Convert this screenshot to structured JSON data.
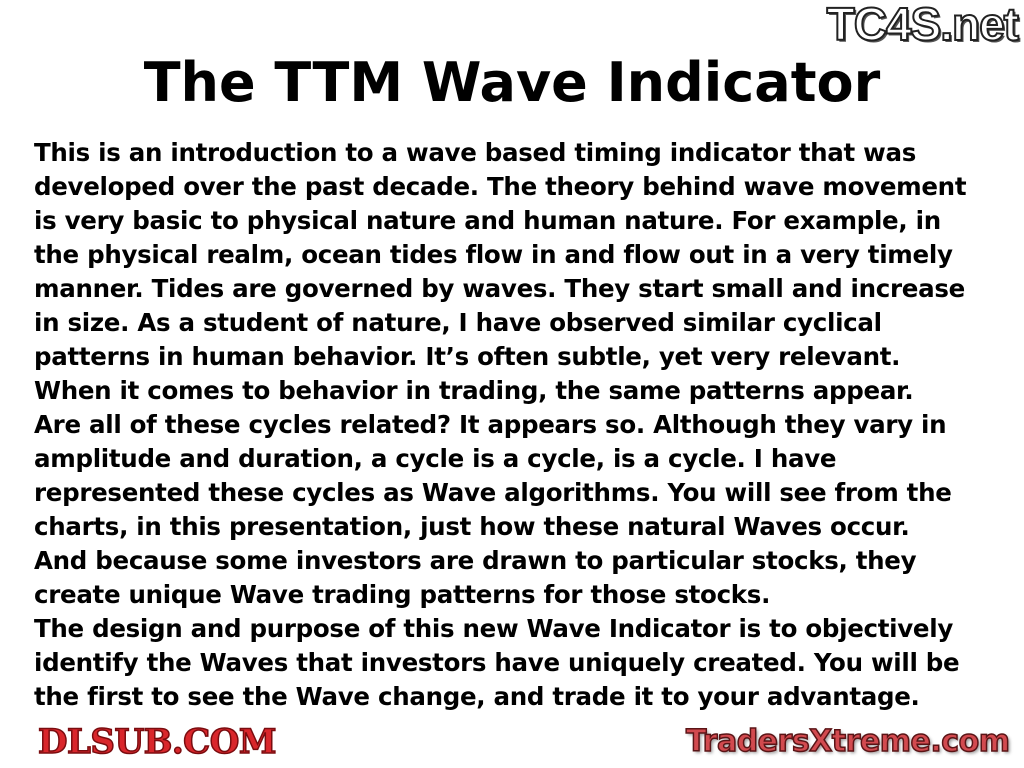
{
  "title": "The TTM Wave Indicator",
  "paragraph_lines": [
    "This is an introduction to a wave based timing indicator that was",
    "developed over the past decade. The theory behind wave movement",
    "is very basic to physical nature and human nature. For example, in",
    "the physical realm, ocean tides flow in and flow out in a very timely",
    "manner. Tides are governed by waves. They start small and increase",
    "in size. As a student of nature, I have observed similar cyclical",
    "patterns in human behavior. It’s often subtle, yet very relevant.",
    "When it comes to behavior in trading, the same patterns appear.",
    "Are all of these cycles related? It appears so. Although they vary in",
    "amplitude and duration, a cycle is a cycle, is a cycle. I have",
    "represented these cycles as Wave algorithms. You will see from the",
    "charts, in this presentation, just how these natural Waves occur.",
    "And because some investors are drawn to particular stocks, they",
    "create unique Wave trading patterns for those stocks.",
    "The design and purpose of this new Wave Indicator is to objectively",
    "identify the Waves that investors have uniquely created. You will be",
    "the first to see the Wave change, and trade it to your advantage."
  ],
  "watermarks": {
    "top_right": "TC4S.net",
    "center": "DLSUB.COM",
    "bottom_right": "TradersXtreme.com"
  }
}
